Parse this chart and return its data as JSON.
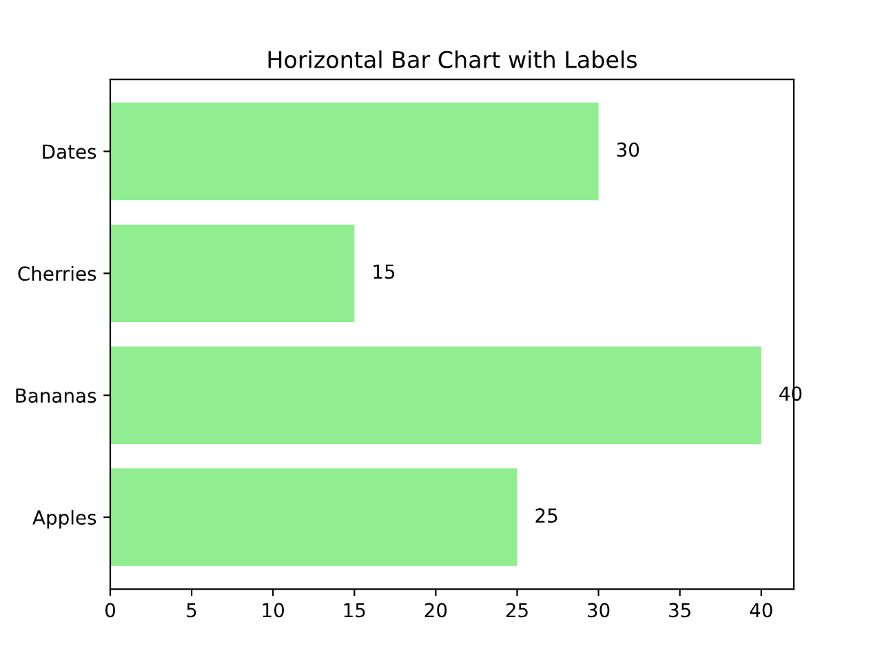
{
  "chart_data": {
    "type": "bar",
    "orientation": "horizontal",
    "title": "Horizontal Bar Chart with Labels",
    "categories": [
      "Dates",
      "Cherries",
      "Bananas",
      "Apples"
    ],
    "values": [
      30,
      15,
      40,
      25
    ],
    "color": "#90ee90",
    "xlim": [
      0,
      42
    ],
    "xticks": [
      0,
      5,
      10,
      15,
      20,
      25,
      30,
      35,
      40
    ],
    "data_labels": true,
    "grid": false
  }
}
